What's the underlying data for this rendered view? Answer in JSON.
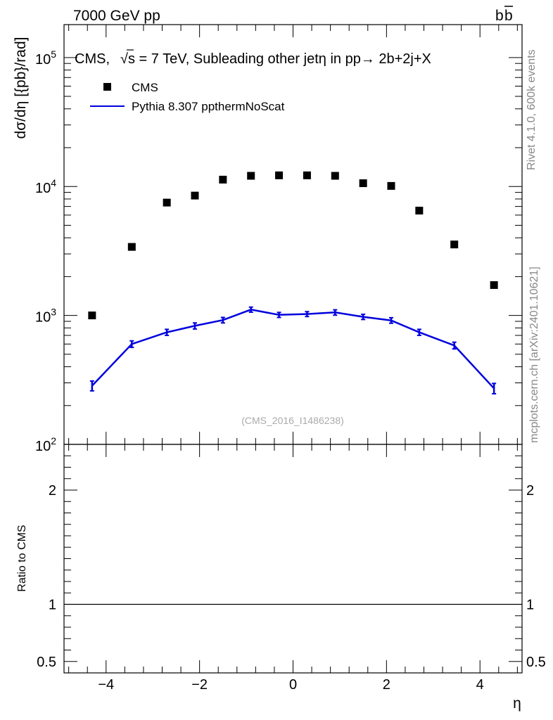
{
  "header": {
    "energy_label": "7000 GeV pp",
    "process_base": "b",
    "process_bar": "b"
  },
  "side_labels": {
    "rivet": "Rivet 4.1.0,  600k events",
    "source": "mcplots.cern.ch [arXiv:2401.10621]"
  },
  "chart_data": {
    "type": "scatter",
    "title_prefix": "CMS, ",
    "title_sqrt": "√",
    "title_rest": "s = 7 TeV, Subleading other jetη in pp→  2b+2j+X",
    "analysis_id": "(CMS_2016_I1486238)",
    "xlabel": "η",
    "ylabel": "dσ/dη [{pb}/rad]",
    "ratio_ylabel": "Ratio to CMS",
    "xlim": [
      -4.9,
      4.9
    ],
    "ylim": [
      100,
      180000
    ],
    "y_scale": "log",
    "ratio_ylim": [
      0.4,
      2.4
    ],
    "x_ticks": [
      -4,
      -2,
      0,
      2,
      4
    ],
    "x_tick_labels": [
      "−4",
      "−2",
      "0",
      "2",
      "4"
    ],
    "y_ticks": [
      100,
      1000,
      10000,
      100000
    ],
    "y_tick_bases": [
      "10",
      "10",
      "10",
      "10"
    ],
    "y_tick_exps": [
      "2",
      "3",
      "4",
      "5"
    ],
    "ratio_ticks": [
      0.5,
      1,
      2
    ],
    "ratio_tick_labels": [
      "0.5",
      "1",
      "2"
    ],
    "legend_position": "top-left",
    "series": [
      {
        "name": "CMS",
        "style": "markers",
        "color": "#000000",
        "x": [
          -4.3,
          -3.45,
          -2.7,
          -2.1,
          -1.5,
          -0.9,
          -0.3,
          0.3,
          0.9,
          1.5,
          2.1,
          2.7,
          3.45,
          4.3
        ],
        "values": [
          1000,
          3400,
          7500,
          8500,
          11300,
          12100,
          12200,
          12200,
          12100,
          10600,
          10100,
          6500,
          3550,
          1720
        ]
      },
      {
        "name": "Pythia 8.307 ppthermNoScat",
        "style": "line",
        "color": "#0000dd",
        "x": [
          -4.3,
          -3.45,
          -2.7,
          -2.1,
          -1.5,
          -0.9,
          -0.3,
          0.3,
          0.9,
          1.5,
          2.1,
          2.7,
          3.45,
          4.3
        ],
        "values": [
          285,
          600,
          740,
          830,
          920,
          1110,
          1010,
          1025,
          1055,
          975,
          915,
          740,
          585,
          272
        ],
        "errors": [
          25,
          35,
          40,
          45,
          45,
          50,
          45,
          45,
          50,
          45,
          45,
          40,
          35,
          25
        ]
      }
    ],
    "ratio_reference": 1
  }
}
